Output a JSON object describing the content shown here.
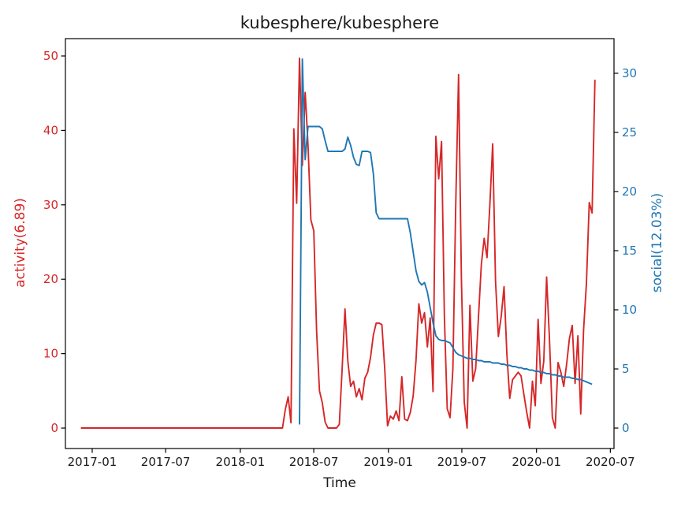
{
  "figure": {
    "title": "kubesphere/kubesphere",
    "background": "#ffffff",
    "spine_color": "#000000",
    "text_color": "#1a1a1a",
    "x_axis": {
      "label": "Time",
      "tick_labels": [
        "2017-01",
        "2017-07",
        "2018-01",
        "2018-07",
        "2019-01",
        "2019-07",
        "2020-01",
        "2020-07"
      ],
      "color": "#1a1a1a"
    },
    "left_axis": {
      "label": "activity(6.89)",
      "ticks": [
        0,
        10,
        20,
        30,
        40,
        50
      ],
      "color": "#d62728"
    },
    "right_axis": {
      "label": "social(12.03%)",
      "ticks": [
        0,
        5,
        10,
        15,
        20,
        25,
        30
      ],
      "color": "#1f77b4"
    }
  },
  "chart_data": {
    "type": "line",
    "title": "kubesphere/kubesphere",
    "xlabel": "Time",
    "grid": false,
    "legend": "none",
    "x_tick_labels": [
      "2017-01",
      "2017-07",
      "2018-01",
      "2018-07",
      "2019-01",
      "2019-07",
      "2020-01",
      "2020-07"
    ],
    "xlim_dates": [
      "2016-10-27",
      "2020-07-10"
    ],
    "left_ylim": [
      -2.75,
      52.33
    ],
    "right_ylim": [
      -1.73,
      32.93
    ],
    "series": [
      {
        "name": "activity",
        "yaxis": "left",
        "color": "#d62728",
        "start_date": "2016-12-04",
        "interval_days": 7,
        "values": [
          0,
          0,
          0,
          0,
          0,
          0,
          0,
          0,
          0,
          0,
          0,
          0,
          0,
          0,
          0,
          0,
          0,
          0,
          0,
          0,
          0,
          0,
          0,
          0,
          0,
          0,
          0,
          0,
          0,
          0,
          0,
          0,
          0,
          0,
          0,
          0,
          0,
          0,
          0,
          0,
          0,
          0,
          0,
          0,
          0,
          0,
          0,
          0,
          0,
          0,
          0,
          0,
          0,
          0,
          0,
          0,
          0,
          0,
          0,
          0,
          0,
          0,
          0,
          0,
          0,
          0,
          0,
          0,
          0,
          0,
          0,
          0,
          2.5,
          4.2,
          0.7,
          40.2,
          30.2,
          49.7,
          35.3,
          45.1,
          38,
          28,
          26.5,
          13,
          5,
          3.4,
          0.8,
          0,
          0,
          0,
          0,
          0.5,
          8,
          16,
          9,
          5.6,
          6.3,
          4.2,
          5.3,
          3.8,
          6.7,
          7.5,
          9.5,
          12.5,
          14.1,
          14.1,
          13.9,
          8,
          0.3,
          1.6,
          1.2,
          2.3,
          1,
          6.9,
          1.2,
          1,
          2.1,
          4.3,
          9.1,
          16.7,
          14.1,
          15.5,
          10.9,
          14.8,
          4.9,
          39.2,
          33.5,
          38.5,
          15,
          2.6,
          1.4,
          8,
          30,
          47.5,
          20,
          3.5,
          0,
          16.5,
          6.3,
          8,
          15,
          22,
          25.5,
          22.9,
          30,
          38.2,
          19.7,
          12.3,
          15,
          19,
          9.9,
          4,
          6.5,
          7,
          7.5,
          7,
          4.5,
          2.1,
          0,
          6.3,
          3,
          14.6,
          6,
          9,
          20.3,
          12,
          1.4,
          0,
          8.8,
          7.5,
          5.6,
          8.5,
          12,
          13.8,
          6,
          12.4,
          1.9,
          13.2,
          19.4,
          30.3,
          28.9,
          46.8
        ]
      },
      {
        "name": "social",
        "yaxis": "right",
        "color": "#1f77b4",
        "start_date": "2018-05-27",
        "interval_days": 7,
        "values": [
          0.3,
          31.2,
          22.7,
          25.5,
          25.5,
          25.5,
          25.5,
          25.5,
          25.3,
          24.3,
          23.4,
          23.4,
          23.4,
          23.4,
          23.4,
          23.4,
          23.6,
          24.6,
          23.9,
          22.9,
          22.3,
          22.2,
          23.4,
          23.4,
          23.4,
          23.3,
          21.5,
          18.2,
          17.7,
          17.7,
          17.7,
          17.7,
          17.7,
          17.7,
          17.7,
          17.7,
          17.7,
          17.7,
          17.7,
          16.5,
          14.9,
          13.3,
          12.4,
          12.1,
          12.3,
          11.5,
          10.2,
          8.9,
          7.8,
          7.5,
          7.4,
          7.4,
          7.3,
          7.2,
          6.8,
          6.4,
          6.2,
          6.1,
          6,
          5.9,
          5.9,
          5.8,
          5.8,
          5.7,
          5.7,
          5.6,
          5.6,
          5.6,
          5.5,
          5.5,
          5.5,
          5.4,
          5.4,
          5.3,
          5.3,
          5.2,
          5.2,
          5.1,
          5.1,
          5,
          5,
          4.9,
          4.9,
          4.8,
          4.8,
          4.7,
          4.7,
          4.6,
          4.6,
          4.5,
          4.5,
          4.4,
          4.4,
          4.3,
          4.3,
          4.3,
          4.2,
          4.2,
          4.1,
          4.1,
          4,
          3.9,
          3.8,
          3.7
        ]
      }
    ]
  }
}
